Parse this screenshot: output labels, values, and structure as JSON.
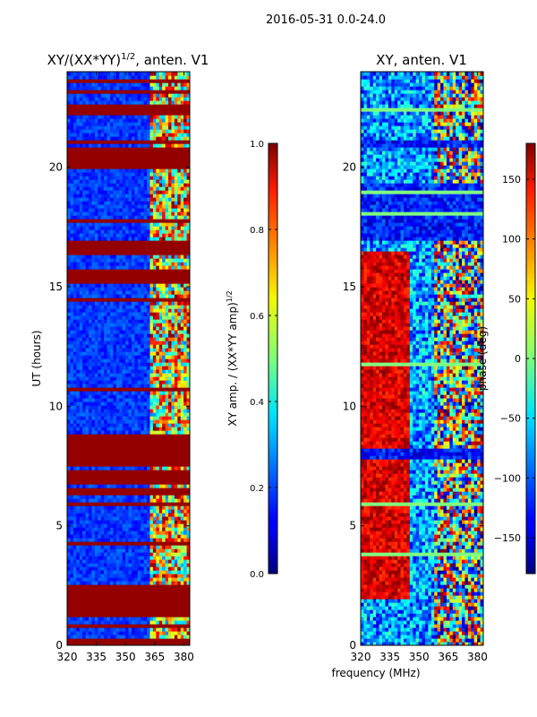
{
  "figure_title": "2016-05-31 0.0-24.0",
  "chart_data": [
    {
      "type": "heatmap",
      "title_main": "XY/(XX*YY)",
      "title_sup": "1/2",
      "title_tail": ", anten. V1",
      "ylabel": "UT (hours)",
      "xlabel": "",
      "xlim": [
        320,
        383
      ],
      "ylim": [
        0,
        24
      ],
      "xticks": [
        320,
        335,
        350,
        365,
        380
      ],
      "yticks": [
        0,
        5,
        10,
        15,
        20
      ],
      "colorbar": {
        "label_main": "XY amp. / (XX*YY amp)",
        "label_sup": "1/2",
        "range": [
          0.0,
          1.0
        ],
        "ticks": [
          "0.0",
          "0.2",
          "0.4",
          "0.6",
          "0.8",
          "1.0"
        ],
        "tick_values": [
          0.0,
          0.2,
          0.4,
          0.6,
          0.8,
          1.0
        ]
      },
      "saturated_bands_hours": [
        [
          0.0,
          0.3
        ],
        [
          1.2,
          2.5
        ],
        [
          4.2,
          4.4
        ],
        [
          6.8,
          7.3
        ],
        [
          8.0,
          8.8
        ],
        [
          15.2,
          15.8
        ],
        [
          16.3,
          16.9
        ],
        [
          20.0,
          20.8
        ],
        [
          22.2,
          22.5
        ]
      ]
    },
    {
      "type": "heatmap",
      "title_main": "XY, anten. V1",
      "xlabel": "frequency (MHz)",
      "xlim": [
        320,
        383
      ],
      "ylim": [
        0,
        24
      ],
      "xticks": [
        320,
        335,
        350,
        365,
        380
      ],
      "yticks": [
        0,
        5,
        10,
        15,
        20
      ],
      "colorbar": {
        "label_main": "phase (deg)",
        "range": [
          -180,
          180
        ],
        "ticks": [
          "−150",
          "−100",
          "−50",
          "0",
          "50",
          "100",
          "150"
        ],
        "tick_values": [
          -150,
          -100,
          -50,
          0,
          50,
          100,
          150
        ]
      },
      "flagged_bands_hours": [
        [
          16.9,
          19.3
        ],
        [
          20.8,
          21.2
        ],
        [
          7.8,
          8.3
        ]
      ]
    }
  ]
}
